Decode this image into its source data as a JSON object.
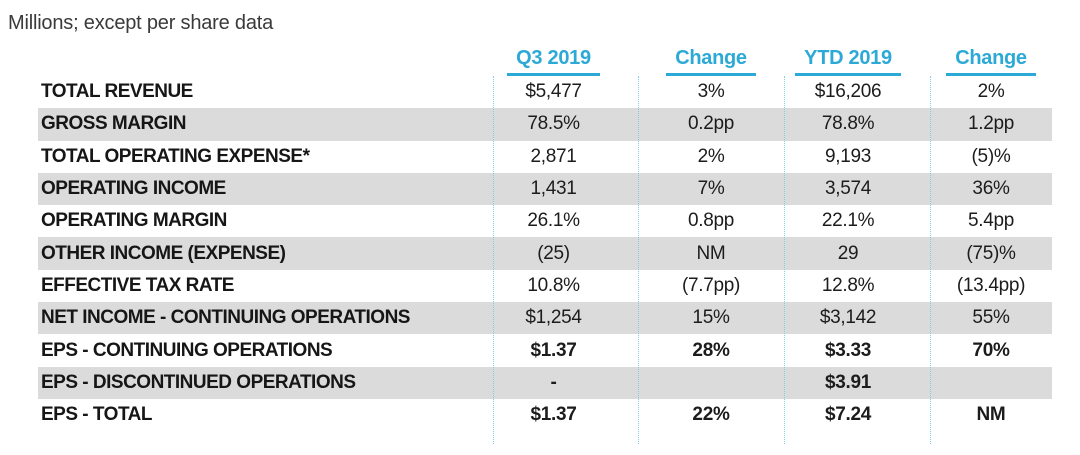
{
  "colors": {
    "accent_cyan": "#2ca9d6",
    "divider_dotted": "#85cbe5",
    "row_shade_gray": "#dbdbdb",
    "text_dark": "#1c1c1c"
  },
  "chart_data": {
    "type": "table",
    "title": "Millions; except per share data",
    "columns": [
      "Q3 2019",
      "Change",
      "YTD 2019",
      "Change"
    ],
    "rows": [
      {
        "label": "TOTAL REVENUE",
        "values": [
          "$5,477",
          "3%",
          "$16,206",
          "2%"
        ],
        "shaded": false,
        "bold_values": false
      },
      {
        "label": "GROSS MARGIN",
        "values": [
          "78.5%",
          "0.2pp",
          "78.8%",
          "1.2pp"
        ],
        "shaded": true,
        "bold_values": false
      },
      {
        "label": "TOTAL OPERATING EXPENSE*",
        "values": [
          "2,871",
          "2%",
          "9,193",
          "(5)%"
        ],
        "shaded": false,
        "bold_values": false
      },
      {
        "label": "OPERATING INCOME",
        "values": [
          "1,431",
          "7%",
          "3,574",
          "36%"
        ],
        "shaded": true,
        "bold_values": false
      },
      {
        "label": "OPERATING MARGIN",
        "values": [
          "26.1%",
          "0.8pp",
          "22.1%",
          "5.4pp"
        ],
        "shaded": false,
        "bold_values": false
      },
      {
        "label": "OTHER INCOME (EXPENSE)",
        "values": [
          "(25)",
          "NM",
          "29",
          "(75)%"
        ],
        "shaded": true,
        "bold_values": false
      },
      {
        "label": "EFFECTIVE TAX RATE",
        "values": [
          "10.8%",
          "(7.7pp)",
          "12.8%",
          "(13.4pp)"
        ],
        "shaded": false,
        "bold_values": false
      },
      {
        "label": "NET INCOME - CONTINUING OPERATIONS",
        "values": [
          "$1,254",
          "15%",
          "$3,142",
          "55%"
        ],
        "shaded": true,
        "bold_values": false
      },
      {
        "label": "EPS - CONTINUING OPERATIONS",
        "values": [
          "$1.37",
          "28%",
          "$3.33",
          "70%"
        ],
        "shaded": false,
        "bold_values": true
      },
      {
        "label": "EPS - DISCONTINUED OPERATIONS",
        "values": [
          "-",
          "",
          "$3.91",
          ""
        ],
        "shaded": true,
        "bold_values": true
      },
      {
        "label": "EPS - TOTAL",
        "values": [
          "$1.37",
          "22%",
          "$7.24",
          "NM"
        ],
        "shaded": false,
        "bold_values": true
      }
    ]
  }
}
